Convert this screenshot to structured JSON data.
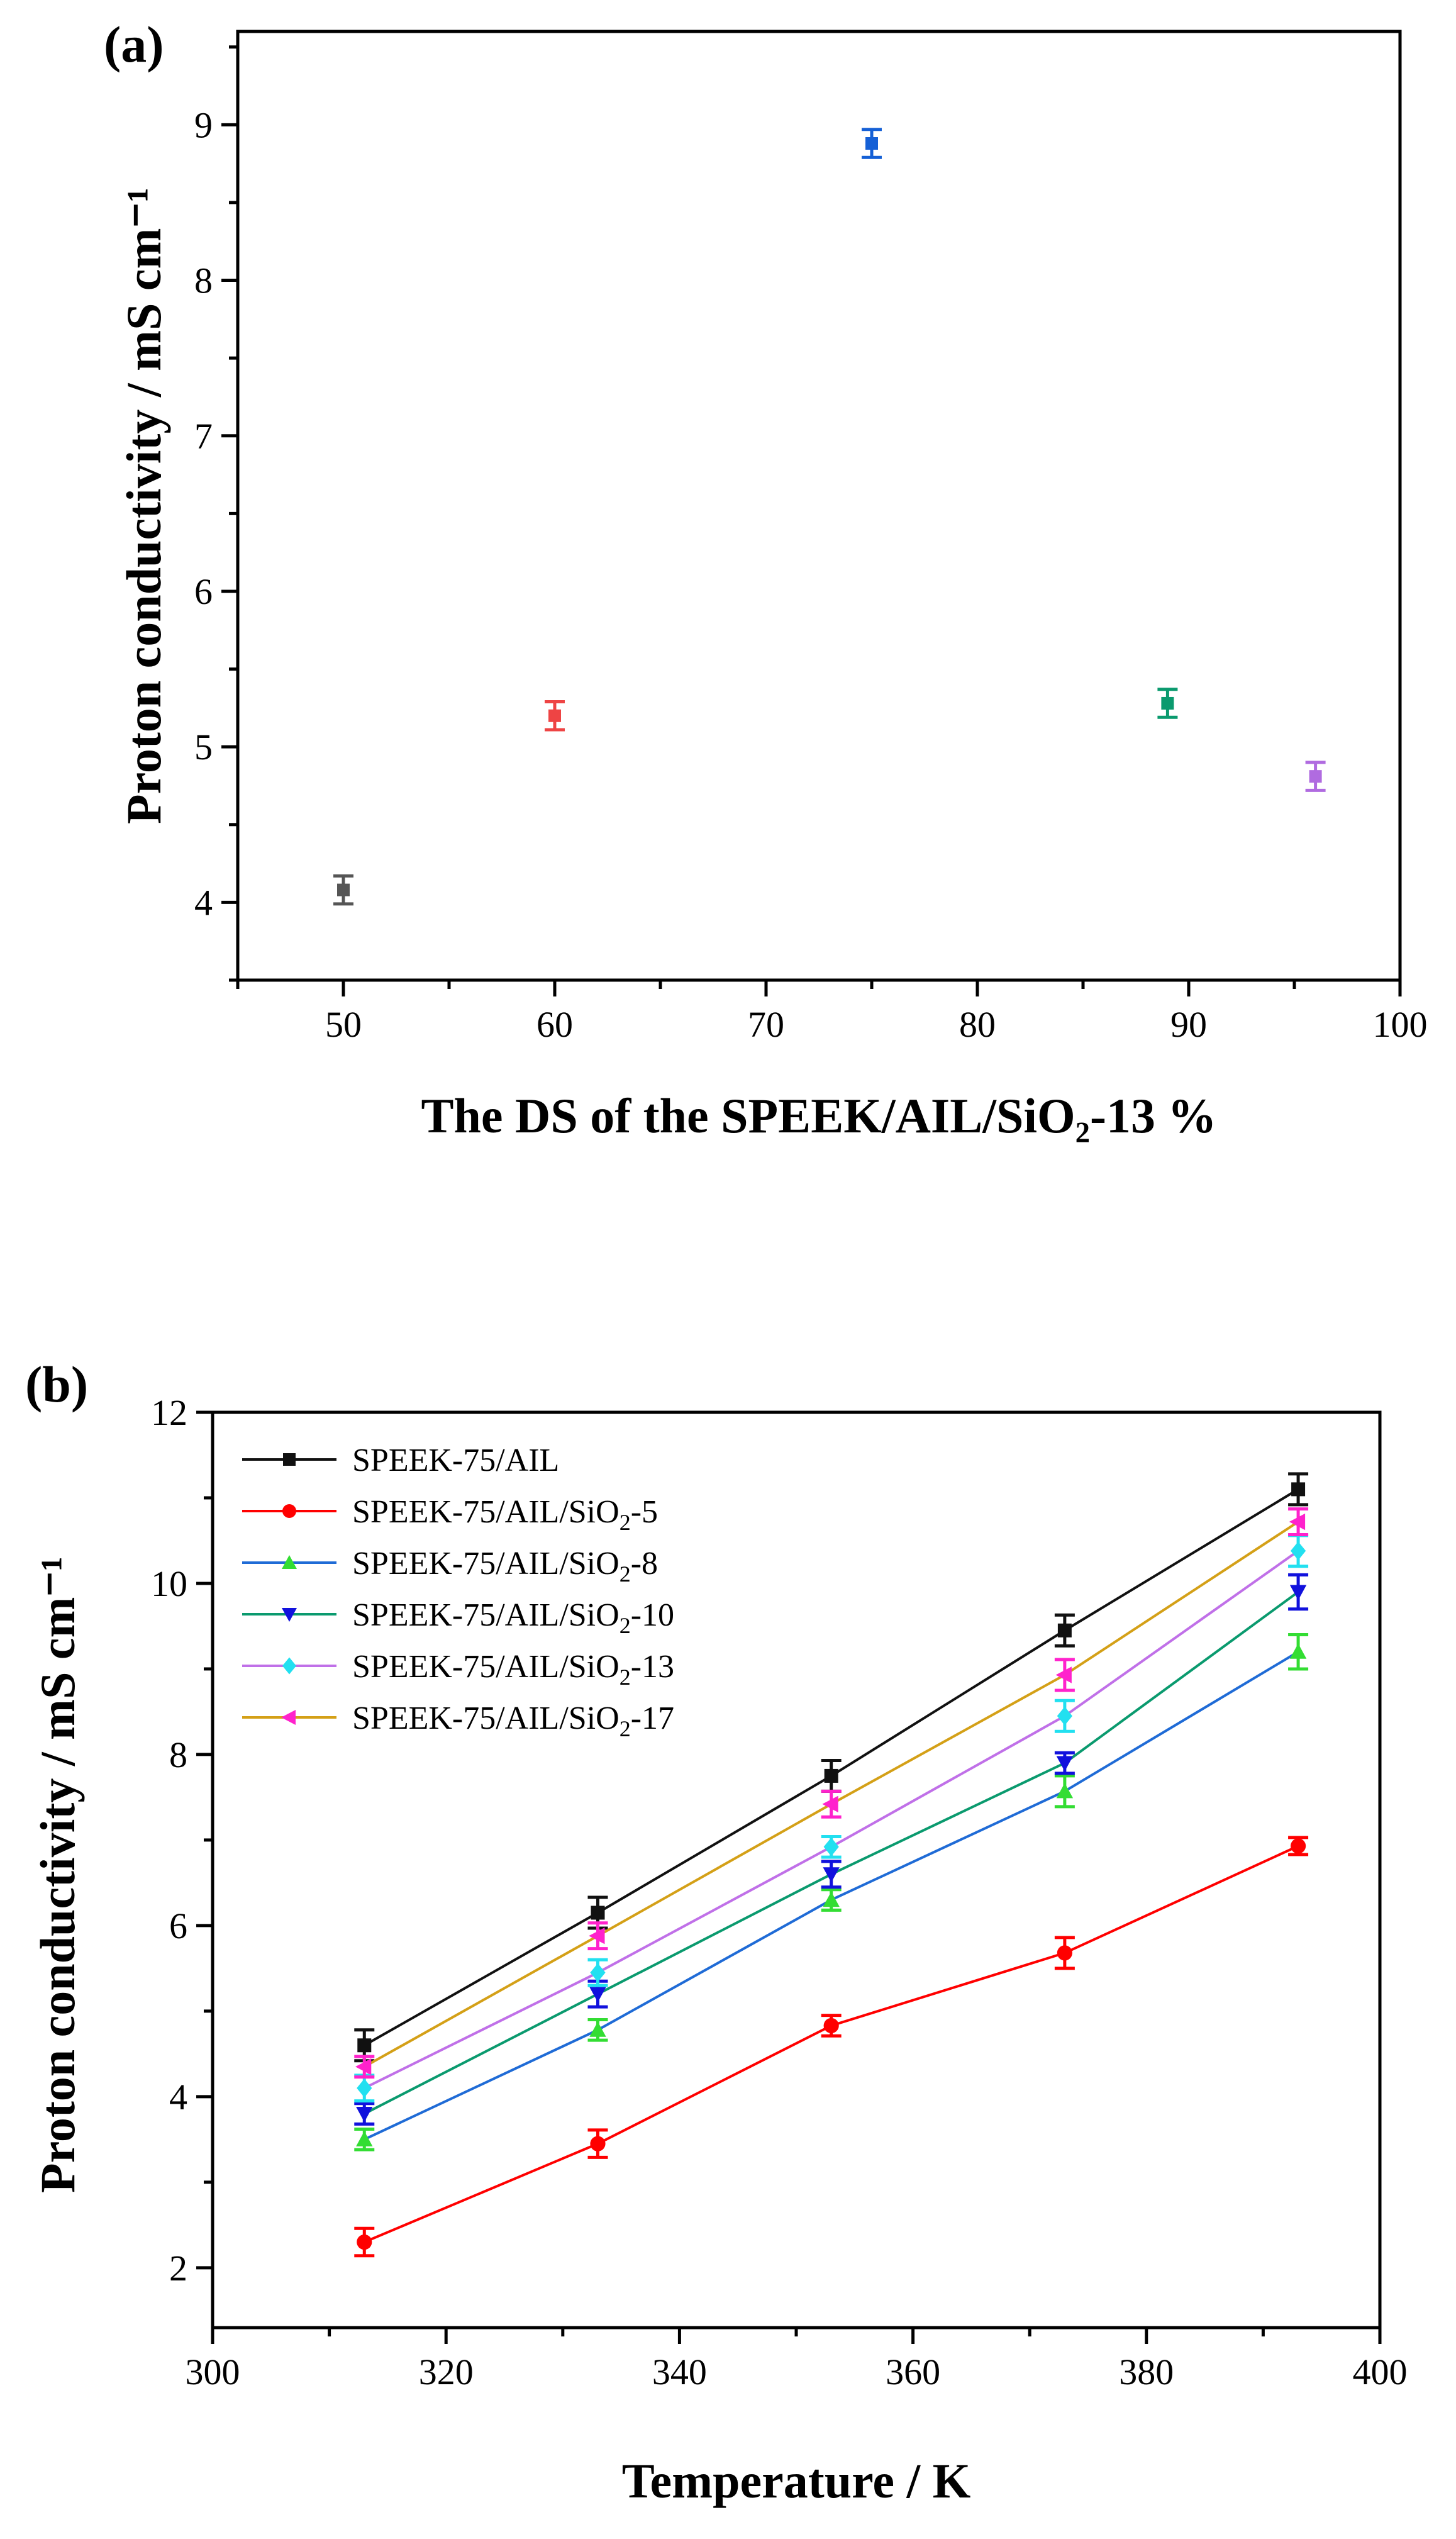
{
  "chart_data": [
    {
      "type": "scatter",
      "panel_label": "(a)",
      "xlabel": "The DS of the SPEEK/AIL/SiO₂-13 %",
      "ylabel": "Proton conductivity / mS cm⁻¹",
      "xlim": [
        45,
        100
      ],
      "ylim": [
        3.5,
        9.6
      ],
      "xticks": [
        50,
        60,
        70,
        80,
        90,
        100
      ],
      "yticks": [
        4,
        5,
        6,
        7,
        8,
        9
      ],
      "grid": false,
      "points": [
        {
          "x": 50,
          "y": 4.08,
          "err": 0.09,
          "color": "#555555"
        },
        {
          "x": 60,
          "y": 5.2,
          "err": 0.09,
          "color": "#ee4444"
        },
        {
          "x": 75,
          "y": 8.88,
          "err": 0.09,
          "color": "#1560d6"
        },
        {
          "x": 89,
          "y": 5.28,
          "err": 0.09,
          "color": "#0a9a6e"
        },
        {
          "x": 96,
          "y": 4.81,
          "err": 0.09,
          "color": "#b06be0"
        }
      ]
    },
    {
      "type": "line",
      "panel_label": "(b)",
      "xlabel": "Temperature / K",
      "ylabel": "Proton conductivity / mS cm⁻¹",
      "xlim": [
        300,
        400
      ],
      "ylim": [
        1.3,
        12
      ],
      "xticks": [
        300,
        320,
        340,
        360,
        380,
        400
      ],
      "yticks": [
        2,
        4,
        6,
        8,
        10,
        12
      ],
      "grid": false,
      "legend_position": "top-left",
      "x": [
        313,
        333,
        353,
        373,
        393
      ],
      "series": [
        {
          "name": "SPEEK-75/AIL",
          "name_main": "SPEEK-75/AIL",
          "name_sub": "",
          "name_tail": "",
          "color": "#111111",
          "marker": "square",
          "values": [
            4.6,
            6.15,
            7.75,
            9.45,
            11.1
          ],
          "err": [
            0.18,
            0.18,
            0.18,
            0.18,
            0.18
          ]
        },
        {
          "name": "SPEEK-75/AIL/SiO2-5",
          "name_main": "SPEEK-75/AIL/SiO",
          "name_sub": "2",
          "name_tail": "-5",
          "color": "#ff0000",
          "marker": "circle",
          "values": [
            2.3,
            3.45,
            4.83,
            5.68,
            6.93
          ],
          "err": [
            0.16,
            0.16,
            0.12,
            0.18,
            0.1
          ]
        },
        {
          "name": "SPEEK-75/AIL/SiO2-8",
          "name_main": "SPEEK-75/AIL/SiO",
          "name_sub": "2",
          "name_tail": "-8",
          "color": "#1f6bd6",
          "marker": "triangle-up",
          "markerColor": "#33dd33",
          "values": [
            3.5,
            4.78,
            6.3,
            7.57,
            9.2
          ],
          "err": [
            0.12,
            0.12,
            0.12,
            0.18,
            0.2
          ]
        },
        {
          "name": "SPEEK-75/AIL/SiO2-10",
          "name_main": "SPEEK-75/AIL/SiO",
          "name_sub": "2",
          "name_tail": "-10",
          "color": "#0a9a6e",
          "marker": "triangle-down",
          "markerColor": "#1111dd",
          "values": [
            3.8,
            5.2,
            6.6,
            7.9,
            9.9
          ],
          "err": [
            0.12,
            0.15,
            0.15,
            0.12,
            0.2
          ]
        },
        {
          "name": "SPEEK-75/AIL/SiO2-13",
          "name_main": "SPEEK-75/AIL/SiO",
          "name_sub": "2",
          "name_tail": "-13",
          "color": "#c070e8",
          "marker": "diamond",
          "markerColor": "#22e0f0",
          "values": [
            4.1,
            5.45,
            6.92,
            8.45,
            10.38
          ],
          "err": [
            0.15,
            0.15,
            0.12,
            0.18,
            0.18
          ]
        },
        {
          "name": "SPEEK-75/AIL/SiO2-17",
          "name_main": "SPEEK-75/AIL/SiO",
          "name_sub": "2",
          "name_tail": "-17",
          "color": "#d4a017",
          "marker": "triangle-left",
          "markerColor": "#ff22cc",
          "values": [
            4.35,
            5.88,
            7.42,
            8.93,
            10.72
          ],
          "err": [
            0.12,
            0.15,
            0.15,
            0.18,
            0.15
          ]
        }
      ]
    }
  ]
}
